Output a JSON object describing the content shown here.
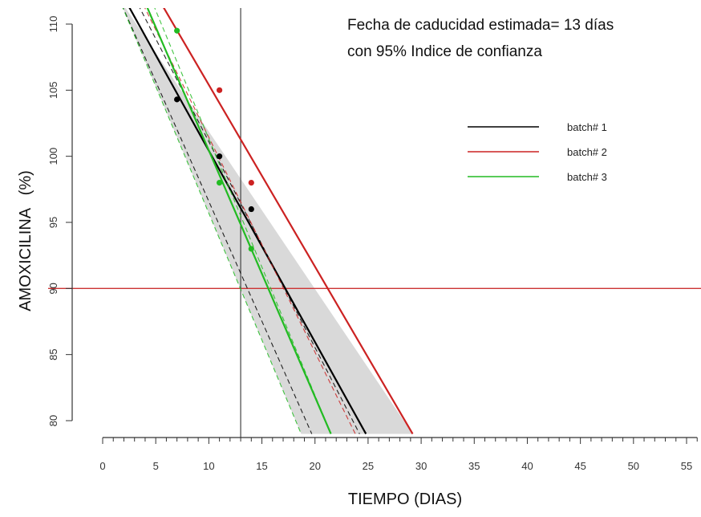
{
  "chart_data": {
    "type": "scatter",
    "title": "",
    "xlabel": "TIEMPO (DIAS)",
    "ylabel": "AMOXICILINA   (%)",
    "xlim": [
      0,
      56
    ],
    "ylim": [
      79,
      111
    ],
    "x_ticks": [
      0,
      5,
      10,
      15,
      20,
      25,
      30,
      35,
      40,
      45,
      50,
      55
    ],
    "y_ticks": [
      80,
      85,
      90,
      95,
      100,
      105,
      110
    ],
    "annotation": [
      "Fecha de caducidad estimada= 13 días",
      "con 95% Indice de confianza"
    ],
    "legend_position": "top-right",
    "reference_lines": {
      "horizontal_y": 90,
      "vertical_x": 13,
      "horizontal_color": "#cc3333",
      "vertical_color": "#444444"
    },
    "confidence_band": {
      "fill": "#d9d9d9",
      "upper": [
        [
          1.5,
          112
        ],
        [
          29.2,
          79
        ]
      ],
      "lower": [
        [
          1.5,
          112
        ],
        [
          18.7,
          79
        ]
      ]
    },
    "series": [
      {
        "name": "batch# 1",
        "color": "#000000",
        "points": [
          [
            7,
            104.3
          ],
          [
            11,
            100
          ],
          [
            14,
            96
          ]
        ],
        "fit": [
          [
            2,
            112
          ],
          [
            24.8,
            79
          ]
        ],
        "ci_upper": [
          [
            3,
            112
          ],
          [
            24.2,
            79
          ]
        ],
        "ci_lower": [
          [
            1.5,
            112
          ],
          [
            19.7,
            79
          ]
        ]
      },
      {
        "name": "batch# 2",
        "color": "#cc2222",
        "points": [
          [
            11,
            105
          ],
          [
            14,
            98
          ]
        ],
        "fit": [
          [
            5.2,
            112
          ],
          [
            29.2,
            79
          ]
        ],
        "ci_upper": [
          [
            5.2,
            112
          ],
          [
            29.2,
            79
          ]
        ],
        "ci_lower": [
          [
            3.5,
            112
          ],
          [
            23.8,
            79
          ]
        ]
      },
      {
        "name": "batch# 3",
        "color": "#22bb22",
        "points": [
          [
            7,
            109.5
          ],
          [
            11,
            98
          ],
          [
            14,
            93
          ]
        ],
        "fit": [
          [
            3.8,
            112
          ],
          [
            21.5,
            79
          ]
        ],
        "ci_upper": [
          [
            4.5,
            112
          ],
          [
            21.5,
            79
          ]
        ],
        "ci_lower": [
          [
            1.5,
            112
          ],
          [
            18.7,
            79
          ]
        ]
      }
    ]
  }
}
